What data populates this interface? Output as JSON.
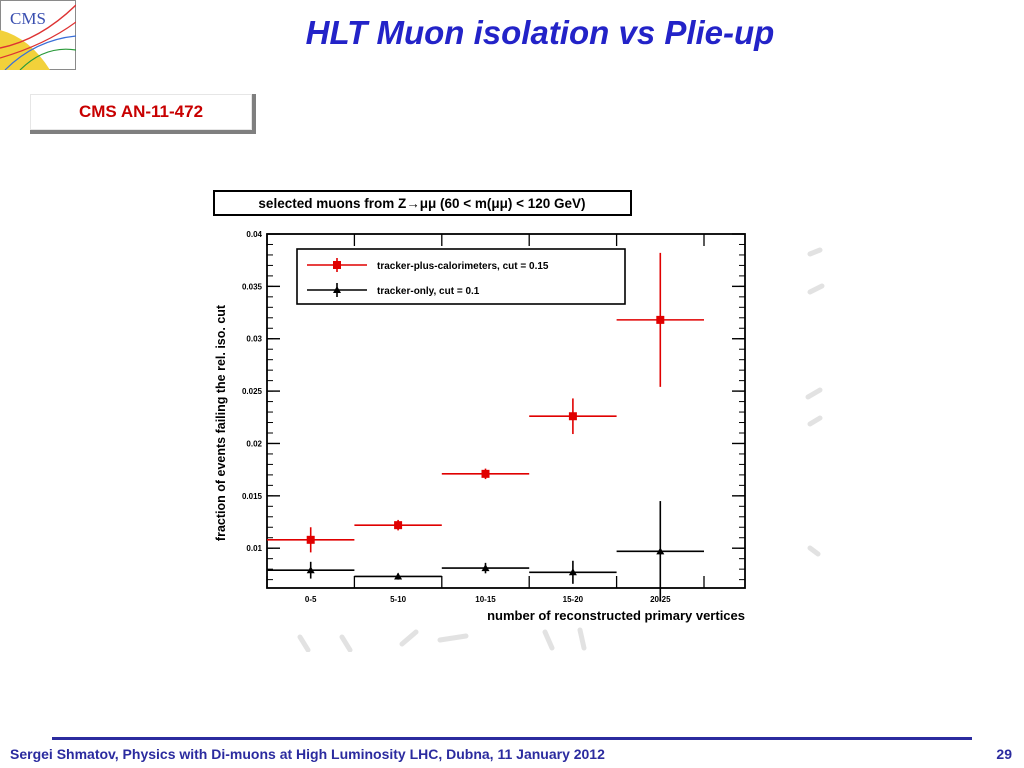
{
  "slide": {
    "title": "HLT Muon isolation vs Plie-up",
    "reference": "CMS AN-11-472",
    "logo_text": "CMS",
    "footer": "Sergei Shmatov, Physics with Di-muons at High Luminosity LHC, Dubna, 11 January 2012",
    "page_number": "29"
  },
  "colors": {
    "title": "#2323c8",
    "reference": "#c80000",
    "footer": "#2b2b9f",
    "series_red": "#e00000",
    "series_black": "#000000"
  },
  "chart_data": {
    "type": "scatter",
    "title": "selected muons from Z→μμ (60 < m(μμ) < 120 GeV)",
    "xlabel": "number of reconstructed primary vertices",
    "ylabel": "fraction of events failing the rel. iso. cut",
    "categories": [
      "0-5",
      "5-10",
      "10-15",
      "15-20",
      "20-25"
    ],
    "ylim": [
      0.0062,
      0.04
    ],
    "yticks": [
      {
        "v": 0.01,
        "label": "0.01"
      },
      {
        "v": 0.015,
        "label": "0.015"
      },
      {
        "v": 0.02,
        "label": "0.02"
      },
      {
        "v": 0.025,
        "label": "0.025"
      },
      {
        "v": 0.03,
        "label": "0.03"
      },
      {
        "v": 0.035,
        "label": "0.035"
      },
      {
        "v": 0.04,
        "label": "0.04"
      }
    ],
    "legend_position": "top-left",
    "series": [
      {
        "name": "tracker-plus-calorimeters, cut = 0.15",
        "color": "#e00000",
        "marker": "square",
        "values": [
          0.0108,
          0.0122,
          0.0171,
          0.0226,
          0.0318
        ],
        "errors": [
          0.0012,
          0.0005,
          0.0005,
          0.0017,
          0.0064
        ]
      },
      {
        "name": "tracker-only, cut = 0.1",
        "color": "#000000",
        "marker": "triangle",
        "values": [
          0.0079,
          0.0073,
          0.0081,
          0.0077,
          0.0097
        ],
        "errors": [
          0.0008,
          0.0003,
          0.0005,
          0.0011,
          0.0048
        ]
      }
    ]
  }
}
